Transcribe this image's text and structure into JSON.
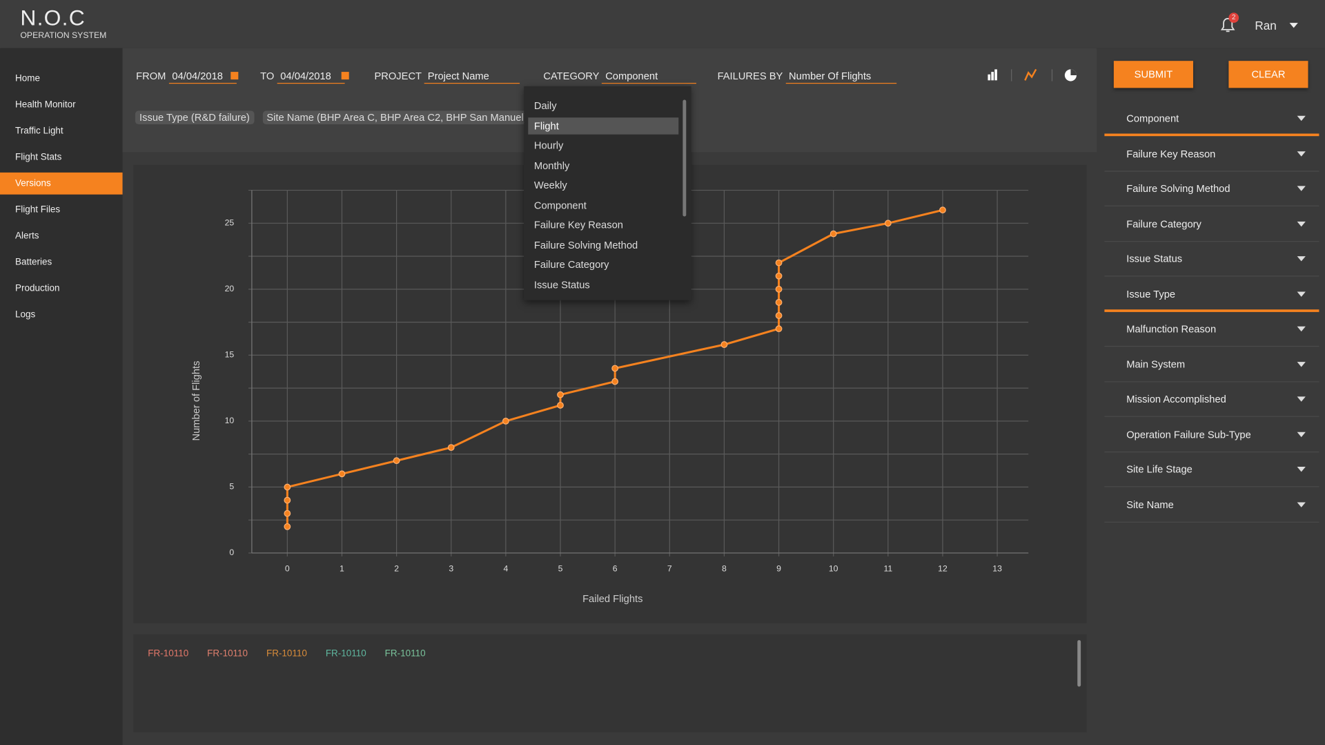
{
  "header": {
    "logo": "N.O.C",
    "subtitle": "OPERATION SYSTEM",
    "notifications": "2",
    "user": "Ran"
  },
  "nav": {
    "items": [
      "Home",
      "Health Monitor",
      "Traffic Light",
      "Flight Stats",
      "Versions",
      "Flight Files",
      "Alerts",
      "Batteries",
      "Production",
      "Logs"
    ],
    "active": 4
  },
  "filters": {
    "from_label": "FROM",
    "from": "04/04/2018",
    "to_label": "TO",
    "to": "04/04/2018",
    "project_label": "PROJECT",
    "project": "Project Name",
    "category_label": "CATEGORY",
    "category": "Component",
    "failures_by_label": "FAILURES BY",
    "failures_by": "Number Of Flights"
  },
  "buttons": {
    "submit": "SUBMIT",
    "clear": "CLEAR"
  },
  "chips": [
    "Issue Type (R&D failure)",
    "Site Name (BHP Area C, BHP Area C2, BHP San Manuel)"
  ],
  "dropdown": {
    "options": [
      "Daily",
      "Flight",
      "Hourly",
      "Monthly",
      "Weekly",
      "Component",
      "Failure Key Reason",
      "Failure Solving Method",
      "Failure Category",
      "Issue Status"
    ],
    "selected": 1
  },
  "side_filters": {
    "items": [
      "Component",
      "Failure Key Reason",
      "Failure Solving Method",
      "Failure Category",
      "Issue Status",
      "Issue Type",
      "Malfunction Reason",
      "Main System",
      "Mission Accomplished",
      "Operation Failure Sub-Type",
      "Site Life Stage",
      "Site Name"
    ],
    "highlighted": [
      0,
      5
    ]
  },
  "chart_data": {
    "type": "line",
    "x_label": "Failed Flights",
    "y_label": "Number of Flights",
    "color": "#f5821f",
    "x": [
      0,
      0,
      0,
      0,
      1,
      2,
      3,
      4,
      5,
      5,
      6,
      6,
      8,
      9,
      9,
      9,
      9,
      9,
      9,
      10,
      11,
      12
    ],
    "values": [
      2,
      3,
      4,
      5,
      6,
      7,
      8,
      10,
      11.2,
      12,
      13,
      14,
      15.8,
      17,
      18,
      19,
      20,
      21,
      22,
      24.2,
      25,
      26
    ],
    "xlim": [
      -0.65,
      13.57
    ],
    "xticks": [
      0,
      1,
      2,
      3,
      4,
      5,
      6,
      7,
      8,
      9,
      10,
      11,
      12,
      13
    ],
    "ylim": [
      0,
      27.5
    ],
    "yticks": [
      0,
      5,
      10,
      15,
      20,
      25
    ],
    "yminor": [
      2.5,
      7.5,
      12.5,
      17.5,
      22.5,
      27.5
    ],
    "grid": true
  },
  "tags": {
    "items": [
      "FR-10110",
      "FR-10110",
      "FR-10110",
      "FR-10110",
      "FR-10110"
    ],
    "colors": [
      "#e4786a",
      "#e0806e",
      "#d98c3a",
      "#5fb8a0",
      "#7ac49c"
    ]
  }
}
